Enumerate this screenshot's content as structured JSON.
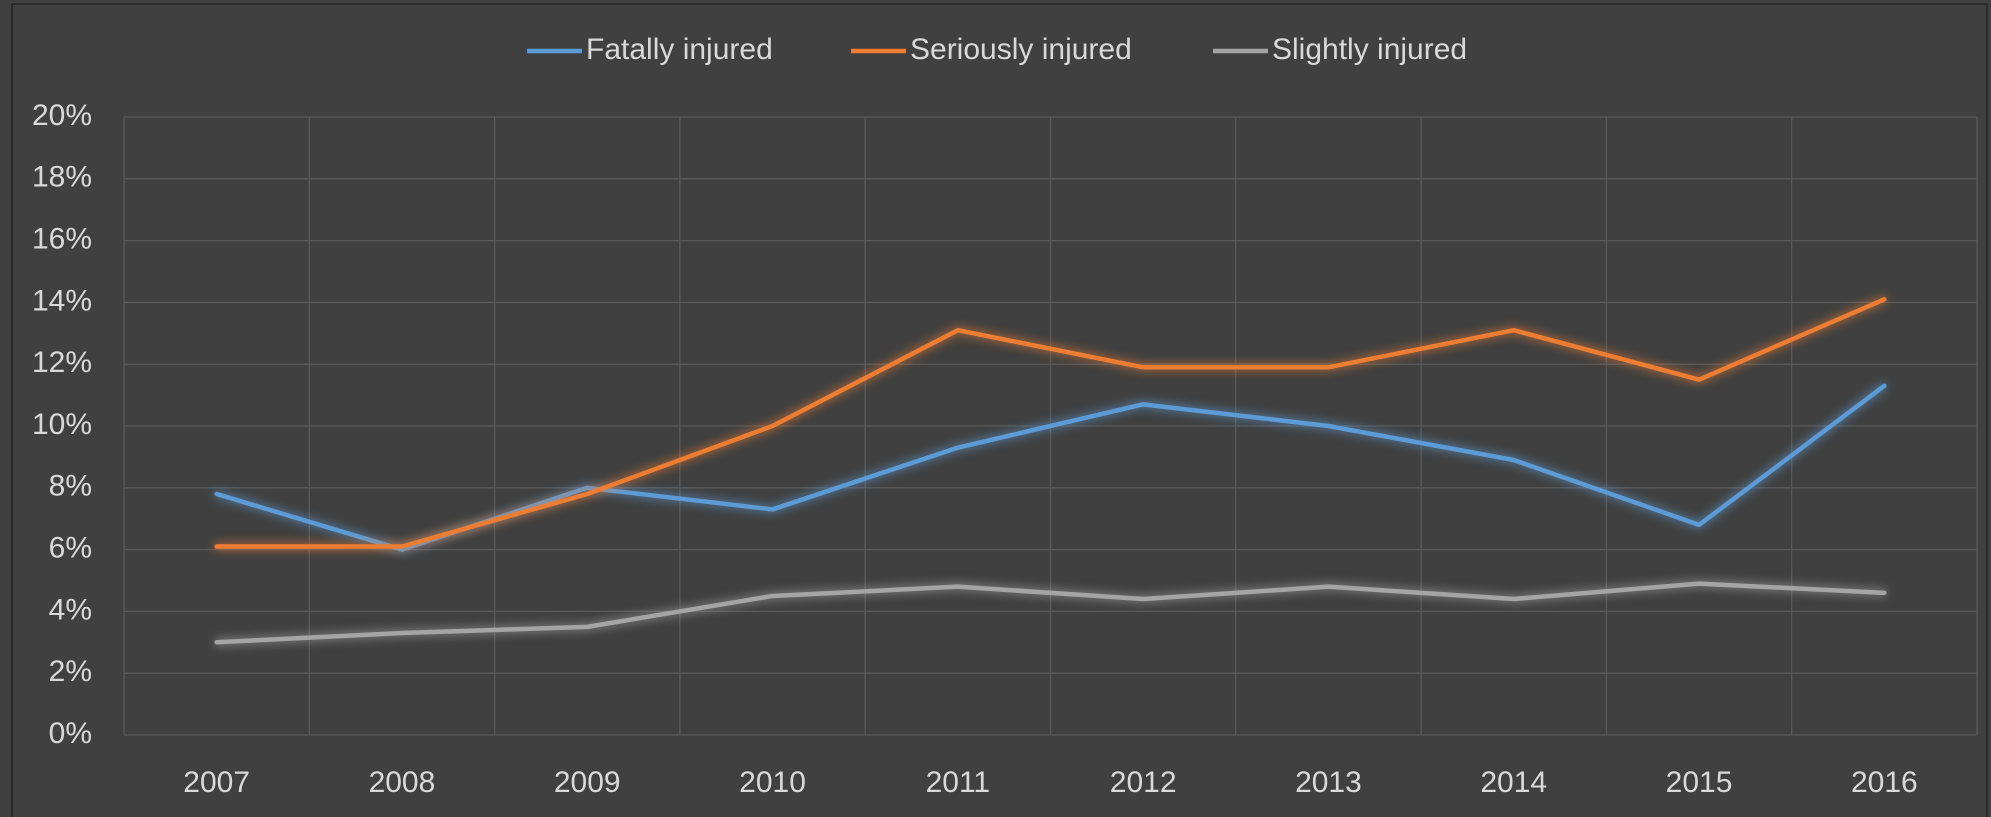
{
  "chart_data": {
    "type": "line",
    "categories": [
      "2007",
      "2008",
      "2009",
      "2010",
      "2011",
      "2012",
      "2013",
      "2014",
      "2015",
      "2016"
    ],
    "series": [
      {
        "name": "Fatally injured",
        "color": "#5b9bd5",
        "values": [
          7.8,
          6.0,
          8.0,
          7.3,
          9.3,
          10.7,
          10.0,
          8.9,
          6.8,
          11.3
        ]
      },
      {
        "name": "Seriously injured",
        "color": "#ed7d31",
        "values": [
          6.1,
          6.1,
          7.8,
          10.0,
          13.1,
          11.9,
          11.9,
          13.1,
          11.5,
          14.1
        ]
      },
      {
        "name": "Slightly injured",
        "color": "#a5a5a5",
        "values": [
          3.0,
          3.3,
          3.5,
          4.5,
          4.8,
          4.4,
          4.8,
          4.4,
          4.9,
          4.6
        ]
      }
    ],
    "ylim": [
      0,
      20
    ],
    "yticks": [
      {
        "value": 0,
        "label": "0%"
      },
      {
        "value": 2,
        "label": "2%"
      },
      {
        "value": 4,
        "label": "4%"
      },
      {
        "value": 6,
        "label": "6%"
      },
      {
        "value": 8,
        "label": "8%"
      },
      {
        "value": 10,
        "label": "10%"
      },
      {
        "value": 12,
        "label": "12%"
      },
      {
        "value": 14,
        "label": "14%"
      },
      {
        "value": 16,
        "label": "16%"
      },
      {
        "value": 18,
        "label": "18%"
      },
      {
        "value": 20,
        "label": "20%"
      }
    ],
    "grid": true,
    "legend": "top"
  }
}
